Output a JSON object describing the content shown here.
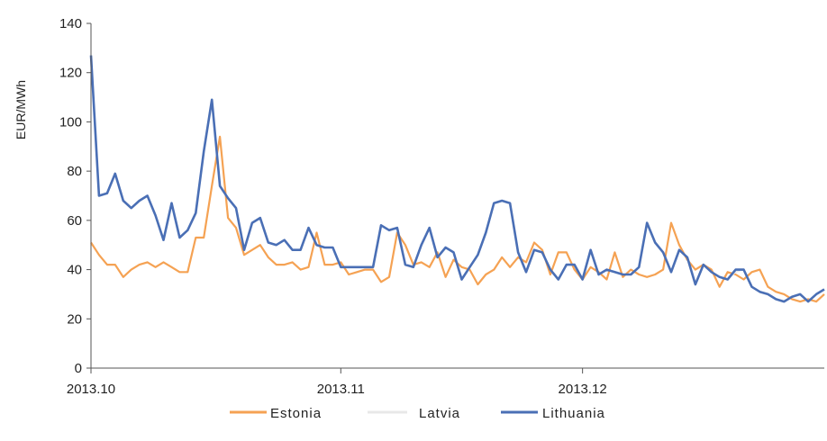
{
  "chart_data": {
    "type": "line",
    "title": "",
    "xlabel": "",
    "ylabel": "EUR/MWh",
    "ylim": [
      0,
      140
    ],
    "yticks": [
      "0",
      "20",
      "40",
      "60",
      "80",
      "100",
      "120",
      "140"
    ],
    "xtick_labels": [
      "2013.10",
      "2013.11",
      "2013.12"
    ],
    "xtick_days": [
      0,
      31,
      61
    ],
    "x_range_days": [
      0,
      91
    ],
    "legend_position": "bottom",
    "grid": false,
    "series": [
      {
        "name": "Estonia",
        "color": "#f5a253",
        "values": [
          51,
          46,
          42,
          42,
          37,
          40,
          42,
          43,
          41,
          43,
          41,
          39,
          39,
          53,
          53,
          74,
          94,
          61,
          57,
          46,
          48,
          50,
          45,
          42,
          42,
          43,
          40,
          41,
          55,
          42,
          42,
          43,
          38,
          39,
          40,
          40,
          35,
          37,
          55,
          50,
          42,
          43,
          41,
          47,
          37,
          44,
          41,
          40,
          34,
          38,
          40,
          45,
          41,
          45,
          43,
          51,
          48,
          38,
          47,
          47,
          40,
          36,
          41,
          39,
          36,
          47,
          37,
          40,
          38,
          37,
          38,
          40,
          59,
          50,
          44,
          40,
          42,
          40,
          33,
          39,
          38,
          36,
          39,
          40,
          33,
          31,
          30,
          28,
          27,
          28,
          27,
          30
        ]
      },
      {
        "name": "Latvia",
        "color": "#e8e8e8",
        "values": [
          127,
          70,
          71,
          79,
          68,
          65,
          68,
          70,
          62,
          52,
          67,
          53,
          56,
          63,
          88,
          109,
          74,
          69,
          65,
          48,
          59,
          61,
          51,
          50,
          52,
          48,
          48,
          57,
          50,
          49,
          49,
          41,
          41,
          41,
          41,
          41,
          58,
          56,
          57,
          42,
          41,
          50,
          57,
          45,
          49,
          47,
          36,
          41,
          46,
          55,
          67,
          68,
          67,
          47,
          39,
          48,
          47,
          40,
          36,
          42,
          42,
          36,
          48,
          38,
          40,
          39,
          38,
          38,
          41,
          59,
          51,
          47,
          39,
          48,
          45,
          34,
          42,
          39,
          37,
          36,
          39,
          40,
          33,
          31,
          30,
          28,
          27,
          29,
          30,
          27,
          30,
          32
        ]
      },
      {
        "name": "Lithuania",
        "color": "#4a6fb5",
        "values": [
          127,
          70,
          71,
          79,
          68,
          65,
          68,
          70,
          62,
          52,
          67,
          53,
          56,
          63,
          88,
          109,
          74,
          69,
          65,
          48,
          59,
          61,
          51,
          50,
          52,
          48,
          48,
          57,
          50,
          49,
          49,
          41,
          41,
          41,
          41,
          41,
          58,
          56,
          57,
          42,
          41,
          50,
          57,
          45,
          49,
          47,
          36,
          41,
          46,
          55,
          67,
          68,
          67,
          47,
          39,
          48,
          47,
          40,
          36,
          42,
          42,
          36,
          48,
          38,
          40,
          39,
          38,
          38,
          41,
          59,
          51,
          47,
          39,
          48,
          45,
          34,
          42,
          39,
          37,
          36,
          40,
          40,
          33,
          31,
          30,
          28,
          27,
          29,
          30,
          27,
          30,
          32
        ]
      }
    ]
  }
}
